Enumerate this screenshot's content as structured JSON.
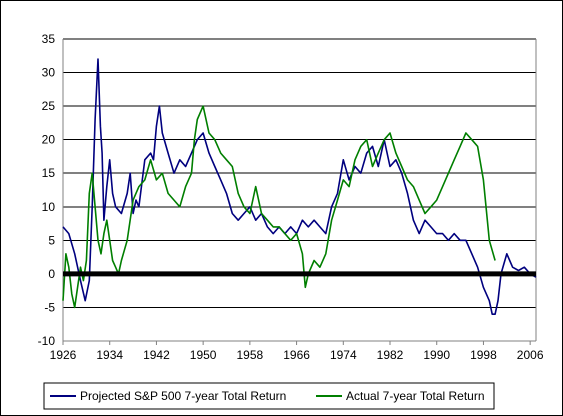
{
  "chart_data": {
    "type": "line",
    "title": "",
    "xlabel": "",
    "ylabel": "",
    "xlim": [
      1926,
      2007
    ],
    "ylim": [
      -10,
      35
    ],
    "xticks": [
      1926,
      1934,
      1942,
      1950,
      1958,
      1966,
      1974,
      1982,
      1990,
      1998,
      2006
    ],
    "yticks": [
      -10,
      -5,
      0,
      5,
      10,
      15,
      20,
      25,
      30,
      35
    ],
    "grid": "horizontal",
    "zero_line": true,
    "legend_position": "bottom",
    "series": [
      {
        "name": "Projected S&P 500 7-year Total Return",
        "color": "#00007f",
        "x": [
          1926,
          1927,
          1928,
          1929,
          1929.8,
          1930.5,
          1931,
          1931.5,
          1932,
          1932.4,
          1932.7,
          1933,
          1933.5,
          1934,
          1934.5,
          1935,
          1936,
          1937,
          1937.5,
          1938,
          1938.5,
          1939,
          1940,
          1941,
          1941.5,
          1942,
          1942.5,
          1943,
          1944,
          1945,
          1946,
          1947,
          1948,
          1949,
          1950,
          1951,
          1952,
          1953,
          1954,
          1955,
          1956,
          1957,
          1958,
          1959,
          1960,
          1961,
          1962,
          1963,
          1964,
          1965,
          1966,
          1967,
          1968,
          1969,
          1970,
          1971,
          1972,
          1973,
          1974,
          1975,
          1976,
          1977,
          1978,
          1979,
          1980,
          1981,
          1982,
          1983,
          1984,
          1985,
          1986,
          1987,
          1988,
          1989,
          1990,
          1991,
          1992,
          1993,
          1994,
          1995,
          1996,
          1997,
          1998,
          1999,
          1999.5,
          2000,
          2000.5,
          2001,
          2002,
          2003,
          2004,
          2005,
          2006,
          2007
        ],
        "values": [
          7,
          6,
          3,
          -1,
          -4,
          -1,
          10,
          23,
          32,
          22,
          18,
          8,
          13,
          17,
          12,
          10,
          9,
          12,
          15,
          9,
          11,
          10,
          17,
          18,
          17,
          22,
          25,
          21,
          18,
          15,
          17,
          16,
          18,
          20,
          21,
          18,
          16,
          14,
          12,
          9,
          8,
          9,
          10,
          8,
          9,
          7,
          6,
          7,
          6,
          7,
          6,
          8,
          7,
          8,
          7,
          6,
          10,
          12,
          17,
          14,
          16,
          15,
          18,
          19,
          16,
          20,
          16,
          17,
          15,
          12,
          8,
          6,
          8,
          7,
          6,
          6,
          5,
          6,
          5,
          5,
          3,
          1,
          -2,
          -4,
          -6,
          -6,
          -4,
          0,
          3,
          1,
          0.5,
          1,
          0,
          -0.5
        ]
      },
      {
        "name": "Actual 7-year Total Return",
        "color": "#007f00",
        "x": [
          1926,
          1926.5,
          1927,
          1927.5,
          1928,
          1928.5,
          1929,
          1929.5,
          1930,
          1930.5,
          1931,
          1931.5,
          1932,
          1932.5,
          1933,
          1933.5,
          1934,
          1934.5,
          1935,
          1935.5,
          1936,
          1937,
          1938,
          1939,
          1940,
          1941,
          1942,
          1943,
          1944,
          1945,
          1946,
          1947,
          1948,
          1948.5,
          1949,
          1950,
          1951,
          1952,
          1953,
          1954,
          1955,
          1956,
          1957,
          1958,
          1959,
          1960,
          1961,
          1962,
          1963,
          1964,
          1965,
          1966,
          1967,
          1967.5,
          1968,
          1969,
          1970,
          1971,
          1972,
          1973,
          1974,
          1975,
          1976,
          1977,
          1978,
          1979,
          1980,
          1981,
          1982,
          1983,
          1984,
          1985,
          1986,
          1987,
          1988,
          1989,
          1990,
          1991,
          1992,
          1993,
          1994,
          1995,
          1996,
          1997,
          1998,
          1999,
          2000
        ],
        "values": [
          -4,
          3,
          1,
          -3,
          -5,
          -2,
          1,
          -1,
          2,
          12,
          15,
          10,
          5,
          3,
          6,
          8,
          5,
          2,
          1,
          0,
          2,
          5,
          11,
          13,
          14,
          17,
          14,
          15,
          12,
          11,
          10,
          13,
          15,
          20,
          23,
          25,
          21,
          20,
          18,
          17,
          16,
          12,
          10,
          9,
          13,
          9,
          8,
          7,
          7,
          6,
          5,
          6,
          3,
          -2,
          0,
          2,
          1,
          3,
          8,
          11,
          14,
          13,
          17,
          19,
          20,
          16,
          18,
          20,
          21,
          18,
          16,
          14,
          13,
          11,
          9,
          10,
          11,
          13,
          15,
          17,
          19,
          21,
          20,
          19,
          14,
          5,
          2
        ]
      }
    ]
  }
}
